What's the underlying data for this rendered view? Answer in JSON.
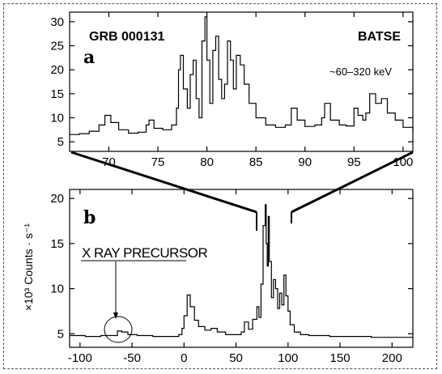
{
  "chart_data": [
    {
      "panel": "a",
      "type": "line",
      "title": "GRB 000131",
      "instrument": "BATSE",
      "energy_band": "~60–320 keV",
      "xlim": [
        66,
        101
      ],
      "ylim": [
        3,
        32
      ],
      "xticks": [
        70,
        75,
        80,
        85,
        90,
        95,
        100
      ],
      "yticks": [
        5,
        10,
        15,
        20,
        25,
        30
      ],
      "x": [
        66,
        67,
        68,
        69,
        69.6,
        70.2,
        71,
        72,
        73,
        73.8,
        74.1,
        74.6,
        75.5,
        76.4,
        76.9,
        77.1,
        77.3,
        77.6,
        78.0,
        78.3,
        78.6,
        78.9,
        79.2,
        79.5,
        79.8,
        80.0,
        80.3,
        80.6,
        80.9,
        81.2,
        81.5,
        81.8,
        82.1,
        82.4,
        82.7,
        83.0,
        83.4,
        83.8,
        84.3,
        85.0,
        86,
        87,
        88,
        88.6,
        89.2,
        90,
        91,
        91.7,
        92.0,
        92.6,
        93.5,
        94.2,
        95.0,
        95.4,
        95.9,
        96.2,
        96.6,
        97.2,
        97.8,
        98.4,
        99.2,
        100,
        101
      ],
      "y": [
        6.5,
        6.7,
        7.2,
        8.5,
        10.5,
        9.0,
        7.5,
        6.8,
        7.0,
        8.5,
        9.5,
        7.8,
        7.5,
        8.5,
        12,
        20,
        23,
        16,
        12,
        19,
        22,
        14,
        10,
        26,
        31,
        22,
        13,
        24,
        27,
        18,
        14,
        17,
        26,
        22,
        16,
        23,
        21,
        17,
        13,
        10,
        8.5,
        8.0,
        8.5,
        12,
        9.5,
        8.2,
        8.5,
        10,
        13,
        9.5,
        8.5,
        8.3,
        12,
        10.5,
        9.5,
        11,
        15,
        13,
        14,
        11,
        9.5,
        8.0,
        7.0
      ]
    },
    {
      "panel": "b",
      "type": "line",
      "ylabel": "×10³ Counts · s⁻¹",
      "annotation": "X RAY PRECURSOR",
      "xlim": [
        -110,
        220
      ],
      "ylim": [
        3.5,
        21
      ],
      "xticks": [
        -100,
        -50,
        0,
        50,
        100,
        150,
        200
      ],
      "yticks": [
        5,
        10,
        15,
        20
      ],
      "x": [
        -110,
        -95,
        -80,
        -70,
        -64,
        -60,
        -54,
        -45,
        -30,
        -15,
        -5,
        -2,
        0,
        3,
        6,
        10,
        14,
        20,
        26,
        32,
        40,
        50,
        55,
        58,
        62,
        66,
        70,
        72,
        74,
        76,
        78,
        79,
        80,
        81,
        82,
        84,
        86,
        88,
        90,
        92,
        94,
        96,
        98,
        100,
        102,
        106,
        112,
        120,
        140,
        160,
        180,
        200,
        220
      ],
      "y": [
        4.8,
        4.7,
        4.8,
        4.8,
        5.3,
        5.2,
        4.9,
        4.8,
        4.7,
        4.7,
        4.9,
        5.6,
        7.0,
        9.3,
        8.0,
        6.5,
        5.8,
        5.4,
        5.6,
        5.2,
        4.9,
        4.9,
        5.2,
        6.3,
        5.5,
        6.6,
        8.0,
        6.8,
        10.5,
        17,
        19.3,
        15,
        12.5,
        18,
        13,
        9.0,
        11,
        10,
        7.8,
        9.5,
        8.2,
        11.5,
        9.2,
        7.5,
        6.0,
        5.2,
        4.9,
        4.8,
        4.7,
        4.7,
        4.6,
        4.6,
        4.6
      ]
    }
  ]
}
